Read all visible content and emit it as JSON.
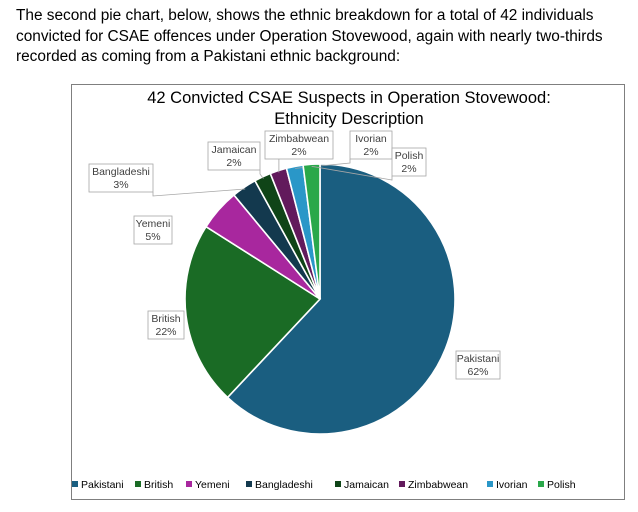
{
  "intro_text": "The second pie chart, below, shows the ethnic breakdown for a total of 42 individuals convicted for CSAE offences under Operation Stovewood, again with nearly two-thirds recorded as coming from a Pakistani ethnic background:",
  "chart_data": {
    "type": "pie",
    "title_line1": "42 Convicted CSAE Suspects in Operation Stovewood:",
    "title_line2": "Ethnicity Description",
    "categories": [
      "Pakistani",
      "British",
      "Yemeni",
      "Bangladeshi",
      "Jamaican",
      "Zimbabwean",
      "Ivorian",
      "Polish"
    ],
    "values": [
      62,
      22,
      5,
      3,
      2,
      2,
      2,
      2
    ],
    "value_labels": [
      "62%",
      "22%",
      "5%",
      "3%",
      "2%",
      "2%",
      "2%",
      "2%"
    ],
    "colors": [
      "#1a5e80",
      "#1a6b25",
      "#a8279e",
      "#13394e",
      "#0f4417",
      "#621a5c",
      "#2a97c8",
      "#2aa84a"
    ],
    "legend_position": "bottom"
  }
}
